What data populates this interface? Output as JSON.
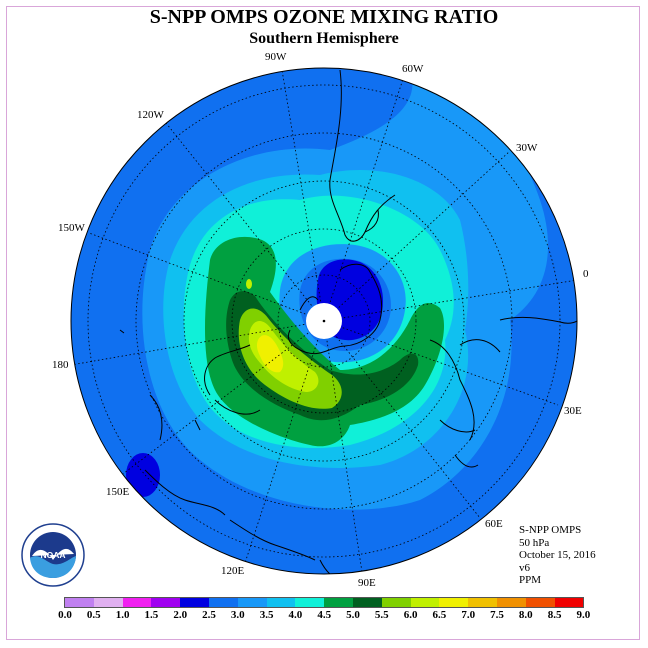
{
  "title": "S-NPP OMPS OZONE MIXING RATIO",
  "subtitle": "Southern Hemisphere",
  "longitude_labels": [
    "90W",
    "60W",
    "120W",
    "30W",
    "150W",
    "0",
    "180",
    "30E",
    "150E",
    "60E",
    "120E",
    "90E"
  ],
  "info": {
    "instrument": "S-NPP OMPS",
    "level": "50 hPa",
    "date": "October 15, 2016",
    "version": "v6",
    "units": "PPM"
  },
  "logo_text": "NOAA",
  "colorbar": {
    "ticks": [
      "0.0",
      "0.5",
      "1.0",
      "1.5",
      "2.0",
      "2.5",
      "3.0",
      "3.5",
      "4.0",
      "4.5",
      "5.0",
      "5.5",
      "6.0",
      "6.5",
      "7.0",
      "7.5",
      "8.0",
      "8.5",
      "9.0"
    ],
    "colors": [
      "#c080f0",
      "#e0b0f0",
      "#f020f0",
      "#a000f0",
      "#0000e0",
      "#1070f0",
      "#1898f8",
      "#10c0f0",
      "#10f0d8",
      "#00a040",
      "#006020",
      "#80d000",
      "#c0f000",
      "#f0f000",
      "#f0c000",
      "#f09000",
      "#f05000",
      "#f00000",
      "#805030"
    ]
  }
}
